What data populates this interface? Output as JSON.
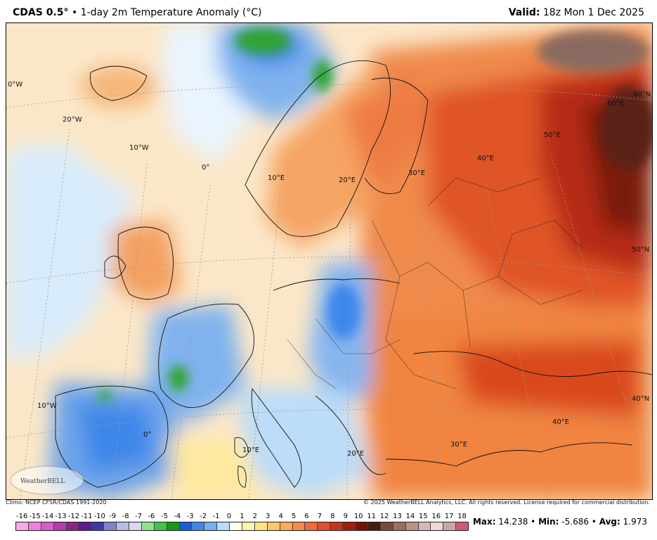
{
  "header": {
    "model": "CDAS 0.5",
    "degree_symbol": "°",
    "separator": "•",
    "field": "1-day 2m Temperature Anomaly (°C)",
    "valid_label": "Valid:",
    "valid_time": "18z Mon 1 Dec 2025"
  },
  "footer": {
    "climo": "Climo: NCEP CFSR/CDAS 1991-2020",
    "copyright": "© 2025 WeatherBELL Analytics, LLC. All rights reserved. License required for commercial distribution."
  },
  "logo": {
    "text": "WeatherBELL"
  },
  "colorbar": {
    "ticks": [
      "-16",
      "-15",
      "-14",
      "-13",
      "-12",
      "-11",
      "-10",
      "-9",
      "-8",
      "-7",
      "-6",
      "-5",
      "-4",
      "-3",
      "-2",
      "-1",
      "0",
      "1",
      "2",
      "3",
      "4",
      "5",
      "6",
      "7",
      "8",
      "9",
      "10",
      "11",
      "12",
      "13",
      "14",
      "15",
      "16",
      "17",
      "18"
    ],
    "colors": [
      "#f7a8e8",
      "#ee80dd",
      "#d85ccb",
      "#b93aa8",
      "#8f2385",
      "#5a1d8f",
      "#3b3aa8",
      "#7f84cc",
      "#b9bde6",
      "#d8d8f0",
      "#8fe08f",
      "#45c245",
      "#129a12",
      "#1a5fd6",
      "#3e86ea",
      "#75aff3",
      "#b9dcfb",
      "#fffdf0",
      "#fff3b0",
      "#ffe38a",
      "#ffc76a",
      "#fca95a",
      "#f58b48",
      "#ee6c38",
      "#e14d28",
      "#c73318",
      "#9e1f0c",
      "#6f1508",
      "#4a1a10",
      "#7a4a3a",
      "#9a6e62",
      "#b8948c",
      "#d4bab4",
      "#ead9d5",
      "#c7a8a8",
      "#d35a6c"
    ],
    "unit_label": ""
  },
  "stats": {
    "max_label": "Max:",
    "max": "14.238",
    "min_label": "Min:",
    "min": "-5.686",
    "avg_label": "Avg:",
    "avg": "1.973",
    "separator": "•"
  },
  "map_labels": {
    "lon_0w_left": "0°W",
    "lon_20w": "20°W",
    "lon_10w_top": "10°W",
    "lon_0_top": "0°",
    "lon_10e_top": "10°E",
    "lon_20e_top": "20°E",
    "lon_30e_top": "30°E",
    "lon_40e_top": "40°E",
    "lon_50e_top": "50°E",
    "lat_60n": "60°N",
    "lon_60e": "60°E",
    "lat_50n": "50°N",
    "lat_40n": "40°N",
    "lon_40e_bottom": "40°E",
    "lon_30e_bottom": "30°E",
    "lon_20e_bottom": "20°E",
    "lon_10e_bottom": "10°E",
    "lon_0_bottom": "0°",
    "lon_10w_bottom": "10°W"
  }
}
